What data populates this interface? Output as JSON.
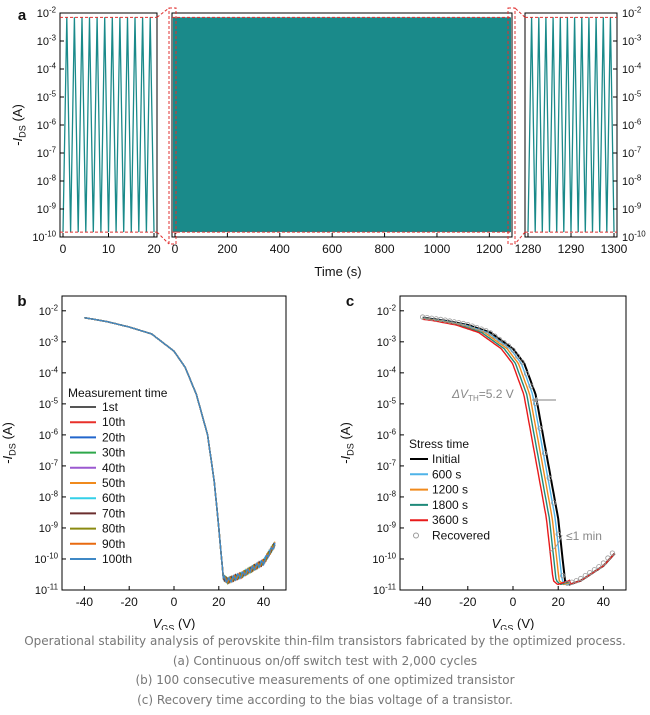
{
  "caption": {
    "line1": "Operational stability analysis of perovskite thin-film transistors fabricated by the optimized process.",
    "line2": "(a) Continuous on/off switch test with 2,000 cycles",
    "line3": "(b) 100 consecutive measurements of one optimized transistor",
    "line4": "(c) Recovery time according to the bias voltage of a transistor."
  },
  "chart_data": [
    {
      "panel": "a",
      "type": "line",
      "xlabel": "Time (s)",
      "ylabel": "-I_DS (A)",
      "y_scale": "log",
      "ylim": [
        1e-10,
        0.01
      ],
      "y_ticks": [
        "10-10",
        "10-9",
        "10-8",
        "10-7",
        "10-6",
        "10-5",
        "10-4",
        "10-3",
        "10-2"
      ],
      "segments": [
        {
          "xlim": [
            0,
            20
          ],
          "x_ticks": [
            "0",
            "10",
            "20"
          ],
          "cycles": 12
        },
        {
          "xlim": [
            0,
            1275
          ],
          "x_ticks": [
            "0",
            "200",
            "400",
            "600",
            "800",
            "1000",
            "1200"
          ],
          "cycles": 2000
        },
        {
          "xlim": [
            1275,
            1300
          ],
          "x_ticks": [
            "1280",
            "1290",
            "1300"
          ],
          "cycles": 12
        }
      ],
      "on_current": 0.007,
      "off_current": 1.5e-10,
      "color": "#1a8a8a",
      "guide_color": "#e03030"
    },
    {
      "panel": "b",
      "type": "line",
      "xlabel": "V_GS (V)",
      "ylabel": "-I_DS (A)",
      "y_scale": "log",
      "xlim": [
        -50,
        50
      ],
      "ylim": [
        1e-11,
        0.03
      ],
      "x_ticks": [
        "-40",
        "-20",
        "0",
        "20",
        "40"
      ],
      "y_ticks": [
        "10-11",
        "10-10",
        "10-9",
        "10-8",
        "10-7",
        "10-6",
        "10-5",
        "10-4",
        "10-3",
        "10-2"
      ],
      "legend_title": "Measurement time",
      "legend_position": "middle-left",
      "series": [
        {
          "name": "1st",
          "color": "#555555"
        },
        {
          "name": "10th",
          "color": "#e8302a"
        },
        {
          "name": "20th",
          "color": "#2266cc"
        },
        {
          "name": "30th",
          "color": "#2ea84a"
        },
        {
          "name": "40th",
          "color": "#9b59d0"
        },
        {
          "name": "50th",
          "color": "#f08a1c"
        },
        {
          "name": "60th",
          "color": "#34d0e8"
        },
        {
          "name": "70th",
          "color": "#6b2e2e"
        },
        {
          "name": "80th",
          "color": "#8a8a10"
        },
        {
          "name": "90th",
          "color": "#e86a10"
        },
        {
          "name": "100th",
          "color": "#3f88c5"
        }
      ],
      "curve": {
        "vgs": [
          -40,
          -30,
          -20,
          -10,
          0,
          5,
          10,
          15,
          18,
          20,
          22,
          24,
          30,
          40,
          45
        ],
        "ids": [
          0.006,
          0.0045,
          0.003,
          0.0018,
          0.0005,
          0.00015,
          2e-05,
          1e-06,
          3e-08,
          1e-09,
          2.5e-11,
          2e-11,
          3e-11,
          8e-11,
          3e-10
        ]
      }
    },
    {
      "panel": "c",
      "type": "line",
      "xlabel": "V_GS (V)",
      "ylabel": "-I_DS (A)",
      "y_scale": "log",
      "xlim": [
        -50,
        50
      ],
      "ylim": [
        1e-11,
        0.03
      ],
      "x_ticks": [
        "-40",
        "-20",
        "0",
        "20",
        "40"
      ],
      "y_ticks": [
        "10-11",
        "10-10",
        "10-9",
        "10-8",
        "10-7",
        "10-6",
        "10-5",
        "10-4",
        "10-3",
        "10-2"
      ],
      "legend_title": "Stress time",
      "legend_position": "lower-left",
      "annotations": {
        "dvth_prefix": "ΔV",
        "dvth_sub": "TH",
        "dvth_value": "=5.2 V",
        "recovery": "≤1 min"
      },
      "series": [
        {
          "name": "Initial",
          "color": "#000000",
          "shift": 0
        },
        {
          "name": "600 s",
          "color": "#4fb3e8",
          "shift": -1.3
        },
        {
          "name": "1200 s",
          "color": "#f08a1c",
          "shift": -2.6
        },
        {
          "name": "1800 s",
          "color": "#1f8a7a",
          "shift": -3.9
        },
        {
          "name": "3600 s",
          "color": "#e81a1a",
          "shift": -5.2
        },
        {
          "name": "Recovered",
          "color": "#999999",
          "shift": 0,
          "marker": "open-circle"
        }
      ],
      "curve": {
        "vgs": [
          -40,
          -30,
          -20,
          -10,
          0,
          5,
          10,
          15,
          20,
          23,
          25,
          30,
          40,
          45
        ],
        "ids": [
          0.006,
          0.0048,
          0.0035,
          0.002,
          0.0006,
          0.0002,
          2e-05,
          2e-07,
          2e-09,
          2e-11,
          1.5e-11,
          2e-11,
          6e-11,
          1.5e-10
        ]
      }
    }
  ]
}
